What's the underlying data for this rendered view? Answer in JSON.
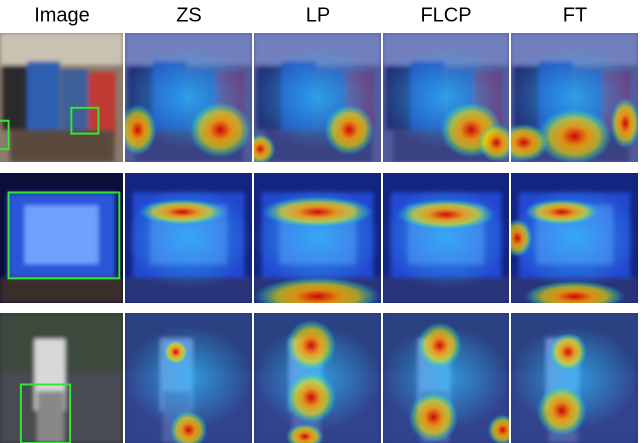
{
  "columns": [
    "Image",
    "ZS",
    "LP",
    "FLCP",
    "FT"
  ]
}
